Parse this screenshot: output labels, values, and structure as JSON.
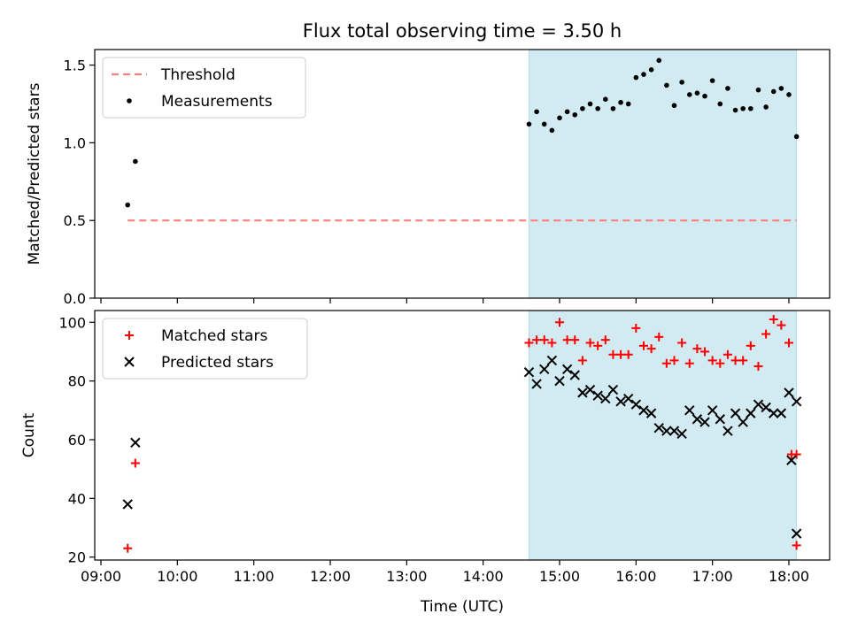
{
  "title": "Flux total observing time = 3.50 h",
  "xlabel": "Time (UTC)",
  "x_ticks": [
    "09:00",
    "10:00",
    "11:00",
    "12:00",
    "13:00",
    "14:00",
    "15:00",
    "16:00",
    "17:00",
    "18:00"
  ],
  "shaded_span": {
    "start": "14:36",
    "end": "18:06",
    "color": "#add8e6"
  },
  "chart_data": [
    {
      "type": "scatter",
      "ylabel": "Matched/Predicted stars",
      "ylim": [
        0,
        1.6
      ],
      "y_ticks": [
        "0.0",
        "0.5",
        "1.0",
        "1.5"
      ],
      "legend_position": "top-left",
      "series": [
        {
          "name": "Threshold",
          "style": "dashed-line",
          "color": "#ff7f7f",
          "x": [
            "09:21",
            "18:06"
          ],
          "y": [
            0.5,
            0.5
          ]
        },
        {
          "name": "Measurements",
          "style": "dot",
          "color": "#000000",
          "x": [
            "09:21",
            "09:27",
            "14:36",
            "14:42",
            "14:48",
            "14:54",
            "15:00",
            "15:06",
            "15:12",
            "15:18",
            "15:24",
            "15:30",
            "15:36",
            "15:42",
            "15:48",
            "15:54",
            "16:00",
            "16:06",
            "16:12",
            "16:18",
            "16:24",
            "16:30",
            "16:36",
            "16:42",
            "16:48",
            "16:54",
            "17:00",
            "17:06",
            "17:12",
            "17:18",
            "17:24",
            "17:30",
            "17:36",
            "17:42",
            "17:48",
            "17:54",
            "18:00",
            "18:06"
          ],
          "y": [
            0.6,
            0.88,
            1.12,
            1.2,
            1.12,
            1.08,
            1.16,
            1.2,
            1.18,
            1.22,
            1.25,
            1.22,
            1.28,
            1.22,
            1.26,
            1.25,
            1.42,
            1.44,
            1.47,
            1.53,
            1.37,
            1.24,
            1.39,
            1.31,
            1.32,
            1.3,
            1.4,
            1.25,
            1.35,
            1.21,
            1.22,
            1.22,
            1.34,
            1.23,
            1.33,
            1.35,
            1.31,
            1.04
          ]
        }
      ]
    },
    {
      "type": "scatter",
      "ylabel": "Count",
      "ylim": [
        19,
        104
      ],
      "y_ticks": [
        "20",
        "40",
        "60",
        "80",
        "100"
      ],
      "legend_position": "top-left",
      "series": [
        {
          "name": "Matched stars",
          "marker": "plus",
          "color": "#ff0000",
          "x": [
            "09:21",
            "09:27",
            "14:36",
            "14:42",
            "14:48",
            "14:54",
            "15:00",
            "15:06",
            "15:12",
            "15:18",
            "15:24",
            "15:30",
            "15:36",
            "15:42",
            "15:48",
            "15:54",
            "16:00",
            "16:06",
            "16:12",
            "16:18",
            "16:24",
            "16:30",
            "16:36",
            "16:42",
            "16:48",
            "16:54",
            "17:00",
            "17:06",
            "17:12",
            "17:18",
            "17:24",
            "17:30",
            "17:36",
            "17:42",
            "17:48",
            "17:54",
            "18:00",
            "18:06"
          ],
          "y": [
            23,
            52,
            93,
            94,
            94,
            93,
            100,
            94,
            94,
            87,
            93,
            92,
            94,
            89,
            89,
            89,
            98,
            92,
            91,
            95,
            86,
            87,
            93,
            86,
            91,
            90,
            87,
            86,
            89,
            87,
            87,
            92,
            85,
            96,
            101,
            99,
            93,
            55
          ]
        },
        {
          "name": "Predicted stars",
          "marker": "x",
          "color": "#000000",
          "x": [
            "09:21",
            "09:27",
            "14:36",
            "14:42",
            "14:48",
            "14:54",
            "15:00",
            "15:06",
            "15:12",
            "15:18",
            "15:24",
            "15:30",
            "15:36",
            "15:42",
            "15:48",
            "15:54",
            "16:00",
            "16:06",
            "16:12",
            "16:18",
            "16:24",
            "16:30",
            "16:36",
            "16:42",
            "16:48",
            "16:54",
            "17:00",
            "17:06",
            "17:12",
            "17:18",
            "17:24",
            "17:30",
            "17:36",
            "17:42",
            "17:48",
            "17:54",
            "18:00",
            "18:06"
          ],
          "y": [
            38,
            59,
            83,
            79,
            84,
            87,
            80,
            84,
            82,
            76,
            77,
            75,
            74,
            77,
            73,
            74,
            72,
            70,
            69,
            64,
            63,
            63,
            62,
            70,
            67,
            66,
            70,
            67,
            63,
            69,
            66,
            69,
            72,
            71,
            69,
            69,
            76,
            73
          ]
        }
      ],
      "extra_points": {
        "matched": {
          "x": [
            "18:02",
            "18:06"
          ],
          "y": [
            55,
            24
          ]
        },
        "predicted": {
          "x": [
            "18:02",
            "18:06"
          ],
          "y": [
            53,
            28
          ]
        }
      }
    }
  ]
}
